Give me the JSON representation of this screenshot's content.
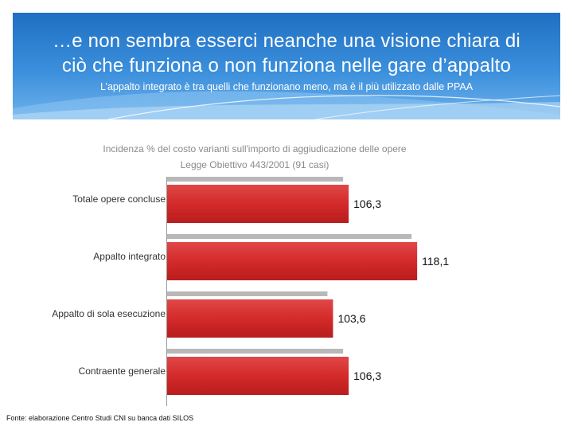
{
  "slide": {
    "title_line1": "…e non sembra esserci neanche una visione chiara di",
    "title_line2": "ciò che funziona o non funziona nelle gare d’appalto",
    "subtitle": "L’appalto integrato è tra quelli che funzionano meno, ma è il più utilizzato dalle PPAA",
    "source": "Fonte: elaborazione Centro Studi CNI su banca dati SILOS"
  },
  "colors": {
    "header_top": "#1f6fc2",
    "header_bottom": "#6fb2ec",
    "bar_red": "#d42a2a",
    "bar_shadow": "#b8b8b8"
  },
  "chart_data": {
    "type": "bar",
    "orientation": "horizontal",
    "title": "Incidenza % del costo varianti sull'importo di aggiudicazione delle opere",
    "subtitle": "Legge Obiettivo 443/2001 (91 casi)",
    "categories": [
      "Totale opere concluse",
      "Appalto integrato",
      "Appalto di sola esecuzione",
      "Contraente generale"
    ],
    "values": [
      106.3,
      118.1,
      103.6,
      106.3
    ],
    "value_labels": [
      "106,3",
      "118,1",
      "103,6",
      "106,3"
    ],
    "xlim": [
      75,
      120
    ],
    "grid": false,
    "legend": "none"
  }
}
